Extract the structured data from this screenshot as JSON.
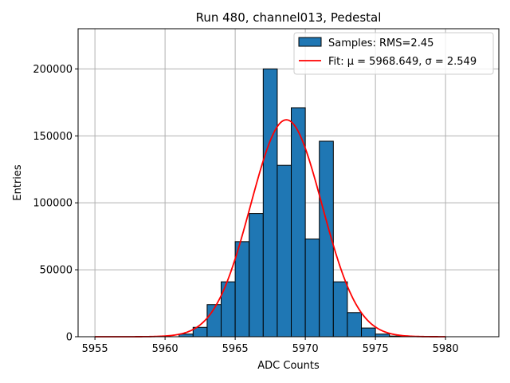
{
  "chart_data": {
    "type": "bar",
    "title": "Run 480, channel013, Pedestal",
    "xlabel": "ADC Counts",
    "ylabel": "Entries",
    "xlim": [
      5953.8,
      5983.8
    ],
    "ylim": [
      0,
      230000
    ],
    "xticks": [
      5955,
      5960,
      5965,
      5970,
      5975,
      5980
    ],
    "yticks": [
      0,
      50000,
      100000,
      150000,
      200000
    ],
    "grid": true,
    "legend_position": "top-right",
    "colors": {
      "bars": "#1f77b4",
      "bar_edge": "#000000",
      "fit": "#ff0000"
    },
    "series": [
      {
        "name": "Samples: RMS=2.45",
        "kind": "histogram",
        "bin_width": 1,
        "bin_edges_start": 5960,
        "counts": [
          0,
          2000,
          7000,
          24000,
          41000,
          71000,
          92000,
          200000,
          128000,
          171000,
          73000,
          146000,
          41000,
          18000,
          6500,
          2000,
          500
        ]
      },
      {
        "name": "Fit: μ = 5968.649, σ = 2.549",
        "kind": "gaussian",
        "amplitude": 162000,
        "mu": 5968.649,
        "sigma": 2.549,
        "x_range": [
          5955,
          5980
        ]
      }
    ]
  }
}
